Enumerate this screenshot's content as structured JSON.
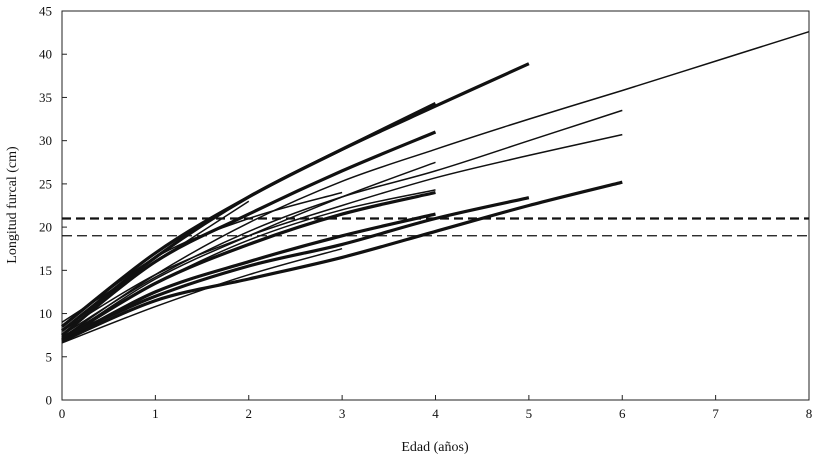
{
  "chart_data": {
    "type": "line",
    "xlabel": "Edad (años)",
    "ylabel": "Longitud furcal (cm)",
    "xlim": [
      0,
      8
    ],
    "ylim": [
      0,
      45
    ],
    "xticks": [
      "0",
      "1",
      "2",
      "3",
      "4",
      "5",
      "6",
      "7",
      "8"
    ],
    "yticks": [
      "0",
      "5",
      "10",
      "15",
      "20",
      "25",
      "30",
      "35",
      "40",
      "45"
    ],
    "grid": false,
    "legend": "none",
    "series": [
      {
        "weight": "thin",
        "x": [
          0,
          1,
          2,
          3,
          4,
          5,
          6,
          7,
          8
        ],
        "y": [
          7.2,
          14.5,
          20.5,
          25.3,
          29.0,
          32.5,
          35.8,
          39.2,
          42.6
        ]
      },
      {
        "weight": "thin",
        "x": [
          0,
          1,
          2,
          3,
          4,
          5,
          6
        ],
        "y": [
          7.5,
          14.2,
          19.5,
          23.5,
          26.5,
          30.0,
          33.5
        ]
      },
      {
        "weight": "thin",
        "x": [
          0,
          1,
          2,
          3,
          4,
          5,
          6
        ],
        "y": [
          8.0,
          14.5,
          19.0,
          22.5,
          25.7,
          28.3,
          30.7
        ]
      },
      {
        "weight": "thick",
        "x": [
          0,
          1,
          2,
          3,
          4,
          5
        ],
        "y": [
          8.5,
          17.0,
          23.5,
          29.0,
          34.0,
          38.9
        ]
      },
      {
        "weight": "thick",
        "x": [
          0,
          1,
          2,
          3,
          4
        ],
        "y": [
          8.0,
          16.5,
          23.5,
          29.0,
          34.3
        ]
      },
      {
        "weight": "thick",
        "x": [
          0,
          1,
          2,
          3,
          4
        ],
        "y": [
          7.5,
          16.0,
          21.5,
          26.5,
          31.0
        ]
      },
      {
        "weight": "thin",
        "x": [
          0,
          1,
          2,
          3,
          4
        ],
        "y": [
          7.0,
          14.0,
          19.0,
          23.5,
          27.5
        ]
      },
      {
        "weight": "thin",
        "x": [
          0,
          1,
          2,
          3
        ],
        "y": [
          8.5,
          16.5,
          21.0,
          24.0
        ]
      },
      {
        "weight": "thin",
        "x": [
          0,
          1,
          2,
          3,
          4
        ],
        "y": [
          7.3,
          13.5,
          18.5,
          22.0,
          24.3
        ]
      },
      {
        "weight": "thick",
        "x": [
          0,
          1,
          2,
          3,
          4
        ],
        "y": [
          7.0,
          13.5,
          18.0,
          21.5,
          24.0
        ]
      },
      {
        "weight": "thick",
        "x": [
          0,
          1,
          2,
          3,
          4
        ],
        "y": [
          6.8,
          12.5,
          16.0,
          19.0,
          21.5
        ]
      },
      {
        "weight": "thick",
        "x": [
          0,
          1,
          2,
          3,
          4,
          5,
          6
        ],
        "y": [
          6.8,
          11.5,
          14.0,
          16.5,
          19.5,
          22.5,
          25.2
        ]
      },
      {
        "weight": "thick",
        "x": [
          0,
          1,
          2,
          3,
          4,
          5
        ],
        "y": [
          7.2,
          12.0,
          15.5,
          18.0,
          21.0,
          23.4
        ]
      },
      {
        "weight": "thin",
        "x": [
          0,
          1,
          2
        ],
        "y": [
          9.0,
          16.0,
          23.0
        ]
      },
      {
        "weight": "thin",
        "x": [
          0,
          1,
          2,
          3
        ],
        "y": [
          6.6,
          10.8,
          14.5,
          17.5
        ]
      }
    ],
    "reference_lines": [
      {
        "y": 21,
        "style": "dashed",
        "weight": "thick"
      },
      {
        "y": 19,
        "style": "dashed",
        "weight": "thin"
      }
    ]
  }
}
